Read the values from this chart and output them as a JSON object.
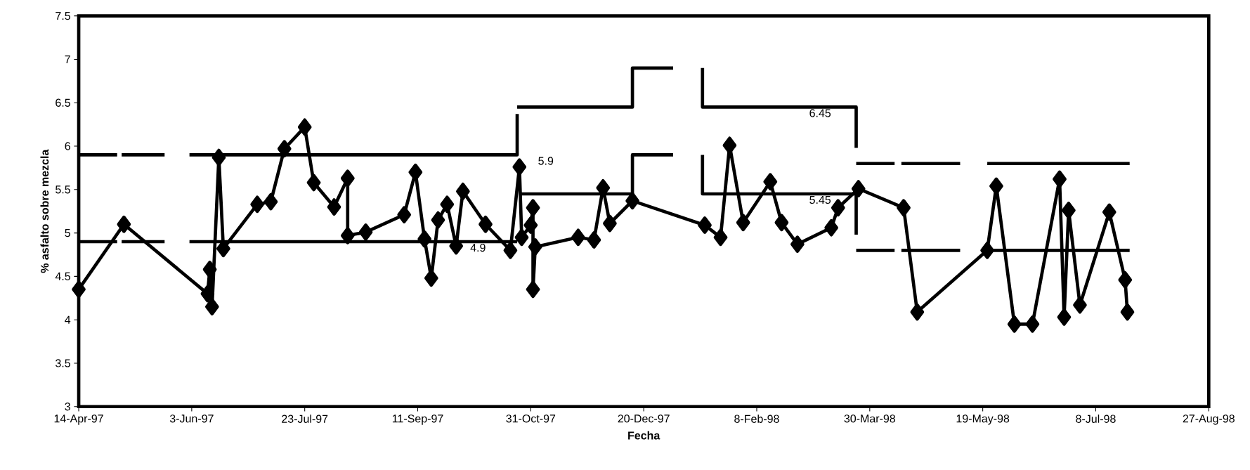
{
  "chart_data": {
    "type": "line",
    "xlabel": "Fecha",
    "ylabel": "% asfalto sobre mezcla",
    "xlim": [
      "1997-04-14",
      "1998-08-27"
    ],
    "xticks": [
      {
        "value": "1997-04-14",
        "label": "14-Apr-97"
      },
      {
        "value": "1997-06-03",
        "label": "3-Jun-97"
      },
      {
        "value": "1997-07-23",
        "label": "23-Jul-97"
      },
      {
        "value": "1997-09-11",
        "label": "11-Sep-97"
      },
      {
        "value": "1997-10-31",
        "label": "31-Oct-97"
      },
      {
        "value": "1997-12-20",
        "label": "20-Dec-97"
      },
      {
        "value": "1998-02-08",
        "label": "8-Feb-98"
      },
      {
        "value": "1998-03-30",
        "label": "30-Mar-98"
      },
      {
        "value": "1998-05-19",
        "label": "19-May-98"
      },
      {
        "value": "1998-07-08",
        "label": "8-Jul-98"
      },
      {
        "value": "1998-08-27",
        "label": "27-Aug-98"
      }
    ],
    "ylim": [
      3,
      7.5
    ],
    "yticks": [
      3,
      3.5,
      4,
      4.5,
      5,
      5.5,
      6,
      6.5,
      7,
      7.5
    ],
    "grid": false,
    "legend": false,
    "marker": "diamond",
    "line_style": "solid",
    "series": [
      {
        "color": "#000000",
        "x": [
          "1997-04-14",
          "1997-05-04",
          "1997-06-10",
          "1997-06-11",
          "1997-06-12",
          "1997-06-15",
          "1997-06-17",
          "1997-07-02",
          "1997-07-08",
          "1997-07-14",
          "1997-07-23",
          "1997-07-27",
          "1997-08-05",
          "1997-08-11",
          "1997-08-11",
          "1997-08-19",
          "1997-09-05",
          "1997-09-10",
          "1997-09-14",
          "1997-09-17",
          "1997-09-20",
          "1997-09-24",
          "1997-09-28",
          "1997-10-01",
          "1997-10-11",
          "1997-10-22",
          "1997-10-26",
          "1997-10-27",
          "1997-10-31",
          "1997-11-01",
          "1997-11-01",
          "1997-11-02",
          "1997-11-21",
          "1997-11-28",
          "1997-12-02",
          "1997-12-05",
          "1997-12-15",
          "1998-01-16",
          "1998-01-23",
          "1998-01-27",
          "1998-02-02",
          "1998-02-14",
          "1998-02-19",
          "1998-02-26",
          "1998-03-13",
          "1998-03-16",
          "1998-03-25",
          "1998-04-14",
          "1998-04-20",
          "1998-05-21",
          "1998-05-25",
          "1998-06-02",
          "1998-06-10",
          "1998-06-22",
          "1998-06-24",
          "1998-06-26",
          "1998-07-01",
          "1998-07-14",
          "1998-07-21",
          "1998-07-22"
        ],
        "values": [
          4.35,
          5.1,
          4.3,
          4.58,
          4.15,
          5.87,
          4.82,
          5.33,
          5.36,
          5.97,
          6.22,
          5.58,
          5.3,
          5.63,
          4.97,
          5.01,
          5.21,
          5.7,
          4.93,
          4.48,
          5.15,
          5.33,
          4.85,
          5.48,
          5.1,
          4.8,
          5.76,
          4.95,
          5.09,
          5.29,
          4.35,
          4.84,
          4.95,
          4.92,
          5.52,
          5.11,
          5.37,
          5.09,
          4.95,
          6.01,
          5.12,
          5.59,
          5.12,
          4.87,
          5.06,
          5.29,
          5.51,
          5.29,
          4.09,
          4.8,
          5.54,
          3.95,
          3.95,
          5.62,
          4.03,
          5.26,
          4.17,
          5.24,
          4.46,
          4.09
        ]
      },
      {
        "color": "#000000",
        "marker": "none",
        "x": [
          "1997-04-14",
          "1997-05-01"
        ],
        "values": [
          5.9,
          5.9
        ]
      },
      {
        "color": "#000000",
        "marker": "none",
        "x": [
          "1997-05-03",
          "1997-05-22"
        ],
        "values": [
          5.9,
          5.9
        ]
      },
      {
        "color": "#000000",
        "marker": "none",
        "x": [
          "1997-06-02",
          "1997-10-25",
          "1997-10-25"
        ],
        "values": [
          5.9,
          5.9,
          6.37
        ]
      },
      {
        "color": "#000000",
        "marker": "none",
        "x": [
          "1997-10-25",
          "1997-12-15",
          "1997-12-15",
          "1998-01-02"
        ],
        "values": [
          6.45,
          6.45,
          6.9,
          6.9
        ]
      },
      {
        "color": "#000000",
        "marker": "none",
        "x": [
          "1998-01-15",
          "1998-01-15",
          "1998-03-24",
          "1998-03-24"
        ],
        "values": [
          6.9,
          6.45,
          6.45,
          5.98
        ]
      },
      {
        "color": "#000000",
        "marker": "none",
        "x": [
          "1998-03-24",
          "1998-04-10"
        ],
        "values": [
          5.8,
          5.8
        ]
      },
      {
        "color": "#000000",
        "marker": "none",
        "x": [
          "1998-04-13",
          "1998-05-09"
        ],
        "values": [
          5.8,
          5.8
        ]
      },
      {
        "color": "#000000",
        "marker": "none",
        "x": [
          "1998-05-21",
          "1998-07-23"
        ],
        "values": [
          5.8,
          5.8
        ]
      },
      {
        "color": "#000000",
        "marker": "none",
        "x": [
          "1997-04-14",
          "1997-05-01"
        ],
        "values": [
          4.9,
          4.9
        ]
      },
      {
        "color": "#000000",
        "marker": "none",
        "x": [
          "1997-05-03",
          "1997-05-22"
        ],
        "values": [
          4.9,
          4.9
        ]
      },
      {
        "color": "#000000",
        "marker": "none",
        "x": [
          "1997-06-02",
          "1997-10-25"
        ],
        "values": [
          4.9,
          4.9
        ]
      },
      {
        "color": "#000000",
        "marker": "none",
        "x": [
          "1997-10-26",
          "1997-12-15",
          "1997-12-15",
          "1998-01-02"
        ],
        "values": [
          5.45,
          5.45,
          5.9,
          5.9
        ]
      },
      {
        "color": "#000000",
        "marker": "none",
        "x": [
          "1998-01-15",
          "1998-01-15",
          "1998-03-24",
          "1998-03-24"
        ],
        "values": [
          5.9,
          5.45,
          5.45,
          4.98
        ]
      },
      {
        "color": "#000000",
        "marker": "none",
        "x": [
          "1998-03-24",
          "1998-04-10"
        ],
        "values": [
          4.8,
          4.8
        ]
      },
      {
        "color": "#000000",
        "marker": "none",
        "x": [
          "1998-04-13",
          "1998-05-09"
        ],
        "values": [
          4.8,
          4.8
        ]
      },
      {
        "color": "#000000",
        "marker": "none",
        "x": [
          "1998-05-21",
          "1998-07-23"
        ],
        "values": [
          4.8,
          4.8
        ]
      }
    ],
    "annotations": [
      {
        "text": "5.9",
        "x": "1997-10-25",
        "y": 5.9
      },
      {
        "text": "4.9",
        "x": "1997-09-25",
        "y": 4.9
      },
      {
        "text": "6.45",
        "x": "1998-02-22",
        "y": 6.45
      },
      {
        "text": "5.45",
        "x": "1998-02-22",
        "y": 5.45
      }
    ]
  }
}
